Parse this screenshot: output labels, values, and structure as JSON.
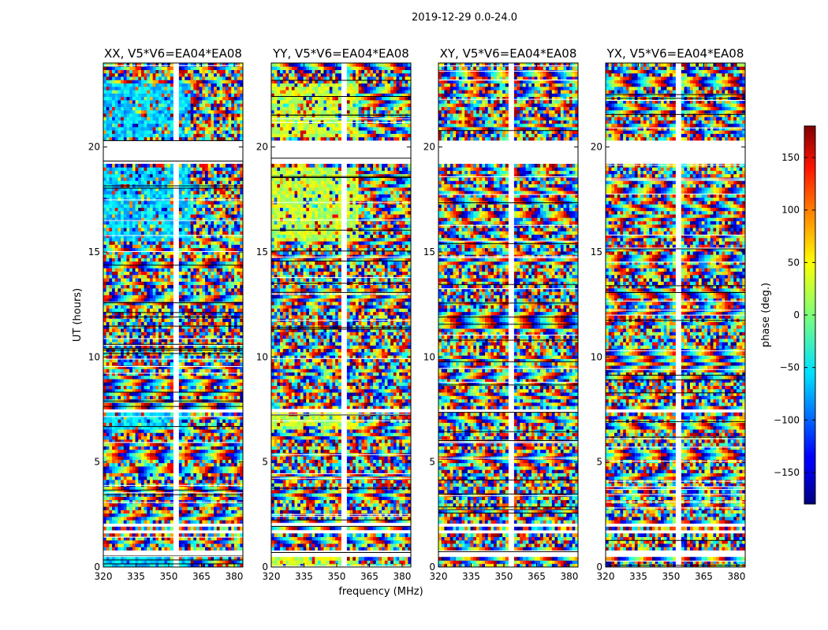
{
  "figure": {
    "suptitle": "2019-12-29 0.0-24.0",
    "xlabel": "frequency (MHz)",
    "ylabel": "UT (hours)",
    "colorbar_label": "phase (deg.)"
  },
  "chart_data": {
    "type": "heatmap",
    "panels": [
      {
        "title": "XX, V5*V6=EA04*EA08",
        "pol": "XX"
      },
      {
        "title": "YY, V5*V6=EA04*EA08",
        "pol": "YY"
      },
      {
        "title": "XY, V5*V6=EA04*EA08",
        "pol": "XY"
      },
      {
        "title": "YX, V5*V6=EA04*EA08",
        "pol": "YX"
      }
    ],
    "x": {
      "label": "frequency (MHz)",
      "range": [
        320,
        384
      ],
      "ticks": [
        320,
        335,
        350,
        365,
        380
      ],
      "tick_labels": [
        "320",
        "335",
        "350",
        "365",
        "380"
      ]
    },
    "y": {
      "label": "UT (hours)",
      "range": [
        0,
        24
      ],
      "ticks": [
        0,
        5,
        10,
        15,
        20
      ],
      "tick_labels": [
        "0",
        "5",
        "10",
        "15",
        "20"
      ]
    },
    "colorbar": {
      "label": "phase (deg.)",
      "range": [
        -180,
        180
      ],
      "ticks": [
        -150,
        -100,
        -50,
        0,
        50,
        100,
        150
      ],
      "tick_labels": [
        "−150",
        "−100",
        "−50",
        "0",
        "50",
        "100",
        "150"
      ],
      "colormap": "jet"
    },
    "flagged_ut_ranges": [
      [
        0.55,
        0.75
      ],
      [
        1.55,
        1.75
      ],
      [
        1.95,
        2.05
      ],
      [
        7.3,
        7.5
      ],
      [
        19.2,
        20.3
      ]
    ],
    "flagged_freq_ranges": [
      [
        352,
        355
      ]
    ],
    "grid": false
  }
}
